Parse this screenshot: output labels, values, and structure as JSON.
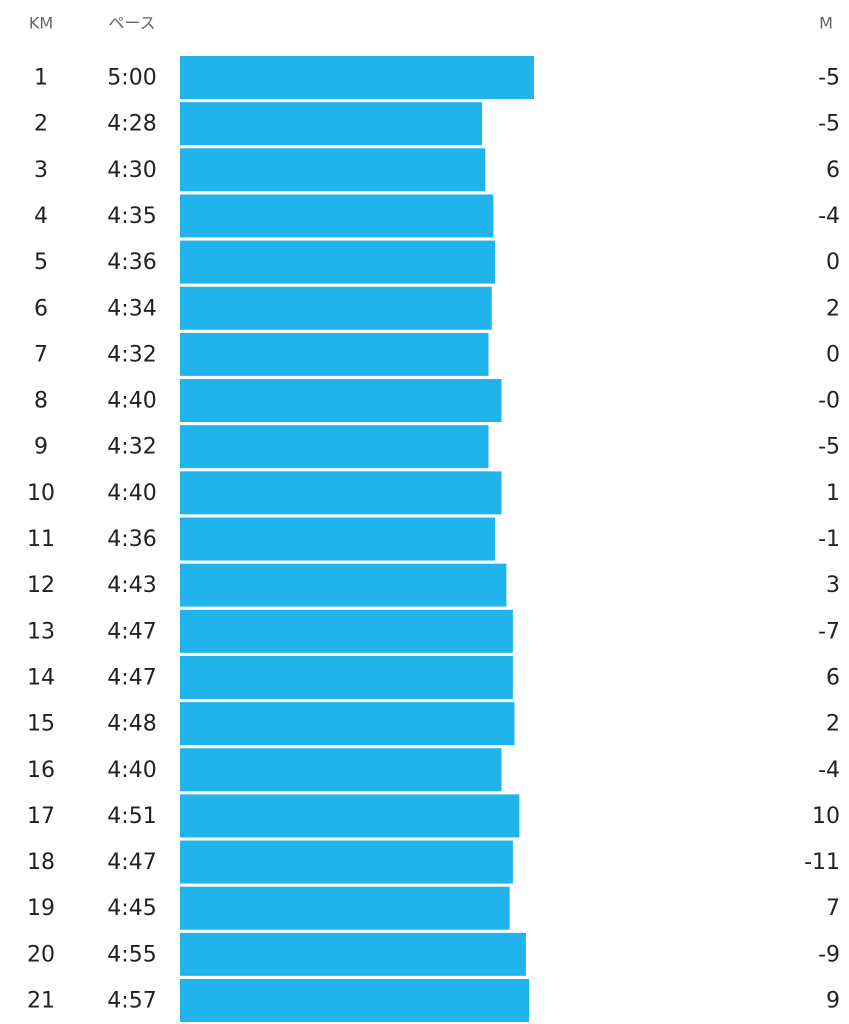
{
  "chart_data": {
    "type": "bar",
    "orientation": "horizontal",
    "headers": {
      "category": "KM",
      "value": "ペース",
      "extra": "M"
    },
    "categories": [
      "1",
      "2",
      "3",
      "4",
      "5",
      "6",
      "7",
      "8",
      "9",
      "10",
      "11",
      "12",
      "13",
      "14",
      "15",
      "16",
      "17",
      "18",
      "19",
      "20",
      "21"
    ],
    "values": [
      300,
      268,
      270,
      275,
      276,
      274,
      272,
      280,
      272,
      280,
      276,
      283,
      287,
      287,
      288,
      280,
      291,
      287,
      285,
      295,
      297
    ],
    "value_labels": [
      "5:00",
      "4:28",
      "4:30",
      "4:35",
      "4:36",
      "4:34",
      "4:32",
      "4:40",
      "4:32",
      "4:40",
      "4:36",
      "4:43",
      "4:47",
      "4:47",
      "4:48",
      "4:40",
      "4:51",
      "4:47",
      "4:45",
      "4:55",
      "4:57"
    ],
    "elevation": [
      -5,
      -5,
      6,
      -4,
      0,
      2,
      0,
      {
        "value": 0,
        "label": "-0"
      },
      -5,
      1,
      -1,
      3,
      -7,
      6,
      2,
      -4,
      10,
      -11,
      7,
      -9,
      9
    ],
    "color": "#21b4ea",
    "xlim": [
      82,
      300
    ]
  }
}
